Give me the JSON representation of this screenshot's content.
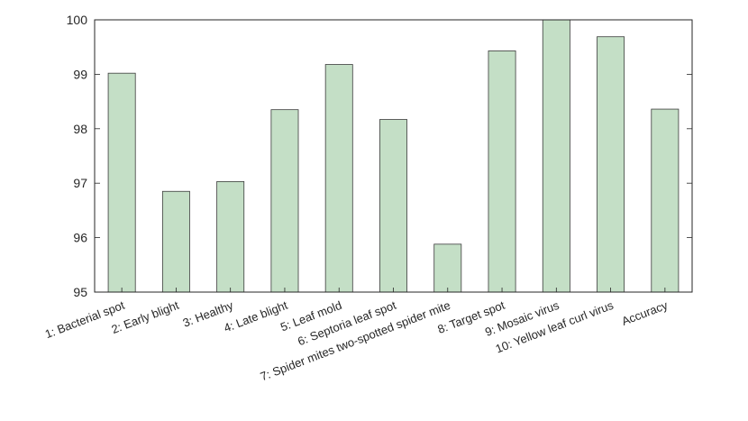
{
  "chart_data": {
    "type": "bar",
    "title": "",
    "xlabel": "",
    "ylabel": "",
    "ylim": [
      95,
      100
    ],
    "yticks": [
      95,
      96,
      97,
      98,
      99,
      100
    ],
    "grid": false,
    "legend": "none",
    "categories": [
      "1: Bacterial spot",
      "2: Early blight",
      "3: Healthy",
      "4: Late blight",
      "5: Leaf mold",
      "6: Septoria leaf spot",
      "7: Spider mites two-spotted spider mite",
      "8: Target spot",
      "9: Mosaic virus",
      "10: Yellow leaf curl virus",
      "Accuracy"
    ],
    "values": [
      99.02,
      96.85,
      97.03,
      98.35,
      99.18,
      98.17,
      95.88,
      99.43,
      100.0,
      99.69,
      98.36
    ],
    "colors": {
      "bar_fill": "#c4dfc6",
      "bar_stroke": "#3b3b3b",
      "axis": "#262626"
    }
  }
}
